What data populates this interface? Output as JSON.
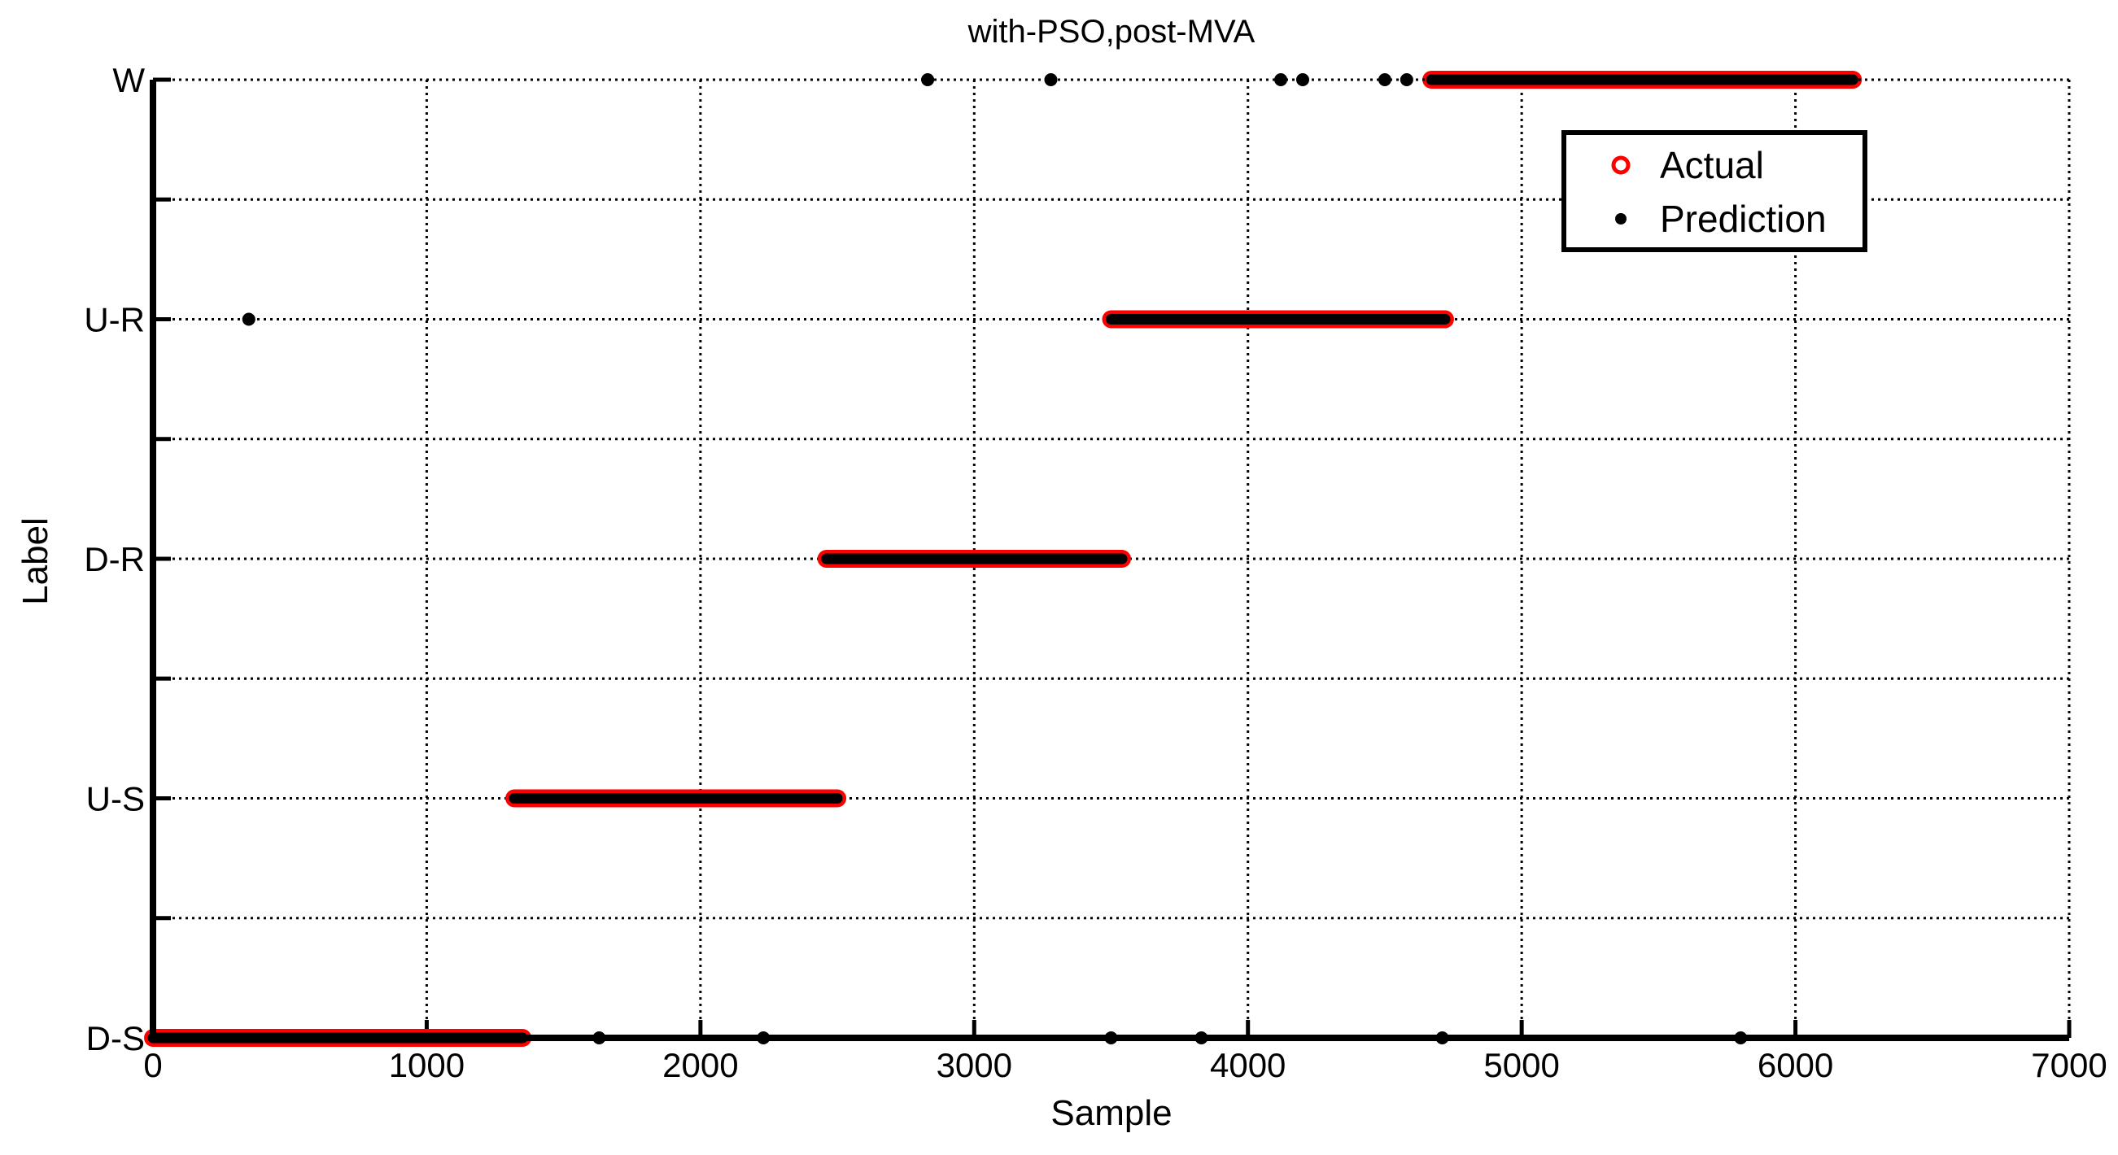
{
  "chart_data": {
    "type": "scatter",
    "title": "with-PSO,post-MVA",
    "xlabel": "Sample",
    "ylabel": "Label",
    "xlim": [
      0,
      7000
    ],
    "xticks": [
      0,
      1000,
      2000,
      3000,
      4000,
      5000,
      6000,
      7000
    ],
    "yticks": [
      {
        "value": 1,
        "label": "D-S"
      },
      {
        "value": 2,
        "label": "U-S"
      },
      {
        "value": 3,
        "label": "D-R"
      },
      {
        "value": 4,
        "label": "U-R"
      },
      {
        "value": 5,
        "label": "W"
      }
    ],
    "ylim": [
      1,
      5
    ],
    "grid": true,
    "legend_position": "top-right",
    "series": [
      {
        "name": "Actual",
        "marker": "circle",
        "color": "#ff0000",
        "segments": [
          {
            "x_start": 0,
            "x_end": 1350,
            "label": "D-S"
          },
          {
            "x_start": 1320,
            "x_end": 2500,
            "label": "U-S"
          },
          {
            "x_start": 2460,
            "x_end": 3540,
            "label": "D-R"
          },
          {
            "x_start": 3500,
            "x_end": 4720,
            "label": "U-R"
          },
          {
            "x_start": 4670,
            "x_end": 6210,
            "label": "W"
          }
        ]
      },
      {
        "name": "Prediction",
        "marker": "dot",
        "color": "#000000",
        "segments": [
          {
            "x_start": 0,
            "x_end": 1350,
            "label": "D-S"
          },
          {
            "x_start": 1320,
            "x_end": 2500,
            "label": "U-S"
          },
          {
            "x_start": 2460,
            "x_end": 3540,
            "label": "D-R"
          },
          {
            "x_start": 3500,
            "x_end": 4720,
            "label": "U-R"
          },
          {
            "x_start": 4670,
            "x_end": 6210,
            "label": "W"
          }
        ],
        "points": [
          {
            "x": 1630,
            "label": "D-S"
          },
          {
            "x": 2230,
            "label": "D-S"
          },
          {
            "x": 3500,
            "label": "D-S"
          },
          {
            "x": 3830,
            "label": "D-S"
          },
          {
            "x": 4710,
            "label": "D-S"
          },
          {
            "x": 5800,
            "label": "D-S"
          },
          {
            "x": 350,
            "label": "U-R"
          },
          {
            "x": 2830,
            "label": "W"
          },
          {
            "x": 3280,
            "label": "W"
          },
          {
            "x": 4120,
            "label": "W"
          },
          {
            "x": 4200,
            "label": "W"
          },
          {
            "x": 4500,
            "label": "W"
          },
          {
            "x": 4580,
            "label": "W"
          }
        ]
      }
    ]
  }
}
